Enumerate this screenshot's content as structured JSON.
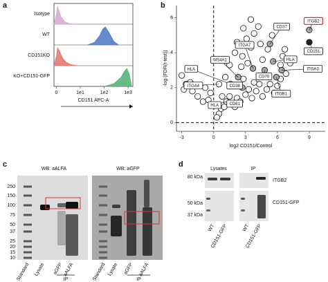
{
  "panel_labels": [
    "a",
    "b",
    "c",
    "d"
  ],
  "chart_data": [
    {
      "type": "ridgeline",
      "xlabel": "CD151 APC-A",
      "xlim": [
        -0.1,
        3.2
      ],
      "xticks": [
        0,
        {
          "value": 1,
          "label": "1e1"
        },
        {
          "value": 2,
          "label": "1e2"
        },
        {
          "value": 3,
          "label": "1e3"
        }
      ],
      "series": [
        {
          "name": "Isotype",
          "color": "#d9a6d2",
          "x": [
            -0.1,
            0,
            0.05,
            0.1,
            0.2,
            0.35,
            0.5,
            0.8
          ],
          "values": [
            0,
            0.6,
            1,
            0.8,
            0.4,
            0.15,
            0.05,
            0
          ]
        },
        {
          "name": "WT",
          "color": "#4a74c4",
          "x": [
            1.3,
            1.6,
            1.8,
            1.95,
            2.05,
            2.2,
            2.4,
            2.6
          ],
          "values": [
            0,
            0.15,
            0.5,
            0.9,
            1,
            0.7,
            0.2,
            0
          ]
        },
        {
          "name": "CD151KO",
          "color": "#e0736b",
          "x": [
            -0.1,
            0,
            0.05,
            0.12,
            0.25,
            0.4,
            0.6,
            0.9
          ],
          "values": [
            0,
            0.55,
            1,
            0.85,
            0.45,
            0.2,
            0.06,
            0
          ]
        },
        {
          "name": "KO+CD151-GFP",
          "color": "#4cb071",
          "x": [
            2.0,
            2.4,
            2.7,
            2.85,
            2.95,
            3.05,
            3.15
          ],
          "values": [
            0,
            0.15,
            0.5,
            0.85,
            1,
            0.7,
            0
          ]
        }
      ]
    },
    {
      "type": "scatter",
      "xlabel": "log2 CD151/Control",
      "ylabel": "-log (FDR(t-test))",
      "xlim": [
        -3.5,
        10.5
      ],
      "ylim": [
        -0.5,
        6.7
      ],
      "xticks": [
        -3,
        0,
        3,
        6,
        9
      ],
      "yticks": [
        0,
        2,
        4,
        6
      ],
      "reference_lines": {
        "x": [
          0
        ],
        "y": [
          0
        ]
      },
      "series": [
        {
          "color": "#ffffff",
          "x": [
            -3,
            -2.6,
            -2.2,
            -2.8,
            -2,
            -1.5,
            -1,
            -0.5,
            -0.3,
            -0.8,
            0.5,
            0.7,
            1,
            0.3,
            1.2,
            1.5,
            0.8,
            1.7,
            2,
            2.2,
            2.5,
            3,
            3.3,
            3.6,
            4,
            4.3,
            3.8,
            4.6,
            5,
            5.3,
            5.7,
            6,
            6.3,
            2.8,
            3.2,
            2.7,
            3.5,
            3.1,
            3.8,
            4.2,
            3.5,
            2.8,
            2.2,
            2.0,
            2.6,
            4.6,
            5.1,
            4.4,
            5.5,
            6.3,
            6.7,
            6.5,
            1.5,
            1.1,
            0.5,
            6.8,
            7.2
          ],
          "values": [
            2.7,
            2.2,
            2.3,
            1.9,
            1.8,
            1.5,
            1.2,
            1.3,
            1.7,
            2.0,
            0.5,
            0.8,
            0.9,
            0.3,
            1.2,
            1.5,
            1.5,
            1.1,
            0.9,
            1.4,
            1.2,
            1.6,
            1.9,
            1.4,
            1.8,
            2.2,
            2.3,
            1.5,
            1.9,
            2.2,
            1.7,
            2.1,
            2.5,
            2.5,
            3.4,
            3.8,
            4.3,
            4.8,
            5.1,
            5.5,
            5.9,
            5.4,
            4.6,
            4.0,
            3.2,
            3.6,
            4.2,
            4.5,
            5.0,
            3.3,
            4.2,
            3.8,
            3.3,
            2.6,
            2.2,
            2.8,
            3.4
          ]
        },
        {
          "color": "#a6a6a6",
          "x": [
            2.3,
            1.6,
            2.7,
            3.7,
            4.8,
            5.6,
            5.3,
            6.4,
            5.9,
            9
          ],
          "values": [
            2.6,
            2.2,
            2.0,
            3.1,
            3.0,
            3.5,
            4.5,
            3.0,
            2.6,
            5.3
          ]
        },
        {
          "color": "#222222",
          "x": [
            9
          ],
          "values": [
            4.6
          ]
        }
      ],
      "annotations": [
        {
          "text": "ITGB2",
          "x": 9,
          "y": 5.3,
          "border_color": "#e03030"
        },
        {
          "text": "CD37",
          "x": 5.3,
          "y": 4.5
        },
        {
          "text": "ITGA7",
          "x": 3.7,
          "y": 3.1
        },
        {
          "text": "MS4A1",
          "x": 2.3,
          "y": 2.6
        },
        {
          "text": "CD151",
          "x": 9,
          "y": 4.6
        },
        {
          "text": "HLA",
          "x": 5.6,
          "y": 3.5
        },
        {
          "text": "ITGA3",
          "x": 6.4,
          "y": 3.0
        },
        {
          "text": "HLA",
          "x": 1.6,
          "y": 2.2
        },
        {
          "text": "ITGA4",
          "x": 0.5,
          "y": 2.2
        },
        {
          "text": "CD38",
          "x": 2.7,
          "y": 2.0
        },
        {
          "text": "CD70",
          "x": 4.8,
          "y": 3.0
        },
        {
          "text": "ITGB1",
          "x": 5.9,
          "y": 2.6
        },
        {
          "text": "CD81",
          "x": 2.5,
          "y": 1.2
        },
        {
          "text": "HLA",
          "x": 1.2,
          "y": 1.2
        }
      ]
    }
  ],
  "blots_c": {
    "titles": [
      "WB: aALFA",
      "WB: aGFP"
    ],
    "mw_markers": [
      "250",
      "150",
      "100",
      "75",
      "50",
      "37",
      "25",
      "20",
      "15",
      "10"
    ],
    "lanes_left": [
      "Standard",
      "Lysate",
      "aGFP",
      "aALFA"
    ],
    "lanes_right": [
      "Standard",
      "Lysate",
      "aGFP",
      "aALFA"
    ],
    "ip_labels": [
      "IP",
      "IP"
    ]
  },
  "blots_d": {
    "headers": [
      "Lysates",
      "IP"
    ],
    "mw_markers": [
      "80 kDa",
      "50 kDa",
      "37 kDa"
    ],
    "proteins": [
      "ITGB2",
      "CD151-GFP"
    ],
    "lanes": [
      "WT",
      "CD151-GFP",
      "WT",
      "CD151-GFP"
    ]
  }
}
